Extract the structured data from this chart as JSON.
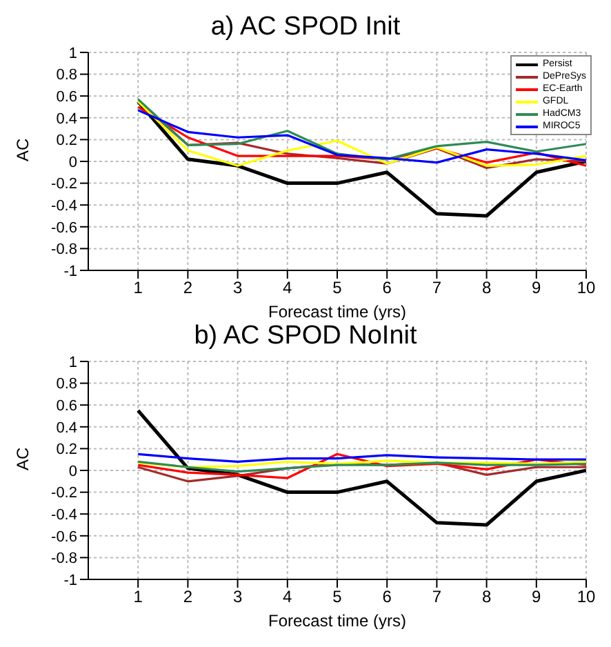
{
  "chart_data": [
    {
      "type": "line",
      "title": "a) AC SPOD Init",
      "xlabel": "Forecast time (yrs)",
      "ylabel": "AC",
      "x": [
        1,
        2,
        3,
        4,
        5,
        6,
        7,
        8,
        9,
        10
      ],
      "xlim": [
        0,
        10
      ],
      "xticks": [
        1,
        2,
        3,
        4,
        5,
        6,
        7,
        8,
        9,
        10
      ],
      "ylim": [
        -1,
        1
      ],
      "yticks": [
        -1,
        -0.8,
        -0.6,
        -0.4,
        -0.2,
        0,
        0.2,
        0.4,
        0.6,
        0.8,
        1
      ],
      "grid": true,
      "legend": "top right",
      "series": [
        {
          "name": "Persist",
          "color": "#000000",
          "values": [
            0.55,
            0.02,
            -0.04,
            -0.2,
            -0.2,
            -0.1,
            -0.48,
            -0.5,
            -0.1,
            0
          ]
        },
        {
          "name": "DePreSys",
          "color": "#a52a2a",
          "values": [
            0.55,
            0.15,
            0.17,
            0.07,
            0.03,
            -0.02,
            0.12,
            -0.06,
            0.02,
            0
          ]
        },
        {
          "name": "EC-Earth",
          "color": "#ff0000",
          "values": [
            0.5,
            0.22,
            0.05,
            0.05,
            0.05,
            0.02,
            0.12,
            -0.01,
            0.08,
            -0.04
          ]
        },
        {
          "name": "GFDL",
          "color": "#ffff00",
          "values": [
            0.55,
            0.1,
            -0.04,
            0.1,
            0.19,
            -0.02,
            0.13,
            -0.04,
            -0.03,
            0.05
          ]
        },
        {
          "name": "HadCM3",
          "color": "#2e8b57",
          "values": [
            0.57,
            0.15,
            0.16,
            0.28,
            0.07,
            0.02,
            0.14,
            0.18,
            0.09,
            0.16
          ]
        },
        {
          "name": "MIROC5",
          "color": "#0000ff",
          "values": [
            0.47,
            0.27,
            0.22,
            0.24,
            0.06,
            0.03,
            -0.01,
            0.11,
            0.07,
            0.01
          ]
        }
      ]
    },
    {
      "type": "line",
      "title": "b) AC SPOD NoInit",
      "xlabel": "Forecast time (yrs)",
      "ylabel": "AC",
      "x": [
        1,
        2,
        3,
        4,
        5,
        6,
        7,
        8,
        9,
        10
      ],
      "xlim": [
        0,
        10
      ],
      "xticks": [
        1,
        2,
        3,
        4,
        5,
        6,
        7,
        8,
        9,
        10
      ],
      "ylim": [
        -1,
        1
      ],
      "yticks": [
        -1,
        -0.8,
        -0.6,
        -0.4,
        -0.2,
        0,
        0.2,
        0.4,
        0.6,
        0.8,
        1
      ],
      "grid": true,
      "series": [
        {
          "color": "#000000",
          "values": [
            0.55,
            0.02,
            -0.04,
            -0.2,
            -0.2,
            -0.1,
            -0.48,
            -0.5,
            -0.1,
            0
          ]
        },
        {
          "color": "#a52a2a",
          "values": [
            0.03,
            -0.1,
            -0.05,
            0.02,
            0.06,
            0.05,
            0.07,
            -0.04,
            0.03,
            0.03
          ]
        },
        {
          "color": "#ff0000",
          "values": [
            0.05,
            -0.02,
            -0.04,
            -0.07,
            0.15,
            0.04,
            0.06,
            0.01,
            0.1,
            0.05
          ]
        },
        {
          "color": "#ffff00",
          "values": [
            0.07,
            0.03,
            0.04,
            0.08,
            0.06,
            0.09,
            0.07,
            0.07,
            0.06,
            0.08
          ]
        },
        {
          "color": "#2e8b57",
          "values": [
            0.08,
            0.03,
            -0.01,
            0.02,
            0.05,
            0.05,
            0.07,
            0.05,
            0.05,
            0.06
          ]
        },
        {
          "color": "#0000ff",
          "values": [
            0.15,
            0.11,
            0.08,
            0.11,
            0.11,
            0.14,
            0.12,
            0.11,
            0.1,
            0.1
          ]
        }
      ]
    }
  ]
}
